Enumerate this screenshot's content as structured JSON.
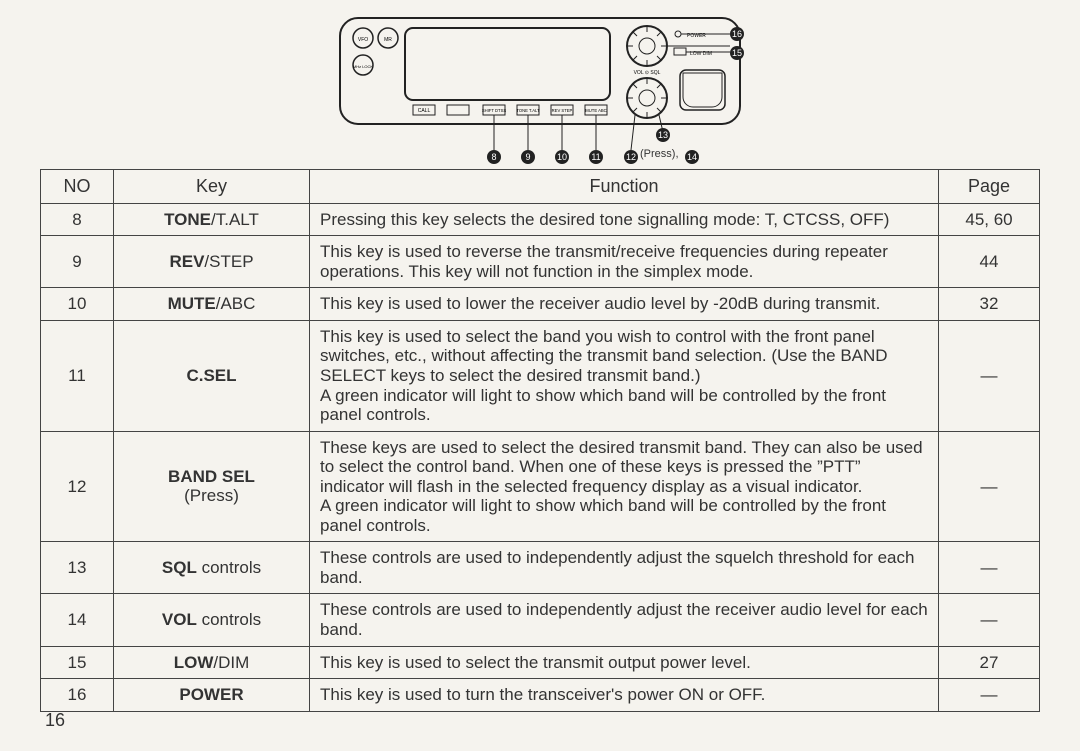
{
  "diagram": {
    "callouts": [
      "8",
      "9",
      "10",
      "11",
      "12",
      "13",
      "14",
      "15",
      "16"
    ],
    "press_label": "(Press),",
    "labels_below": [
      "CALL",
      "SHIFT DTSS",
      "TONE T.ALT",
      "REV STEP",
      "MUTE ABC"
    ],
    "right_labels": [
      "POWER",
      "LOW DIM"
    ],
    "left_btns": [
      "VFO",
      "MR",
      "MHz LOCK"
    ],
    "vol_sql": "VOL ⊙ SQL"
  },
  "headers": {
    "no": "NO",
    "key": "Key",
    "func": "Function",
    "page": "Page"
  },
  "rows": [
    {
      "no": "8",
      "key": "<b>TONE</b>/T.ALT",
      "func": "Pressing this key selects the desired tone signalling mode: T, CTCSS, OFF)",
      "page": "45, 60"
    },
    {
      "no": "9",
      "key": "<b>REV</b>/STEP",
      "func": "This key is used to reverse the transmit/receive frequencies during repeater operations.  This key will not function in the simplex mode.",
      "page": "44"
    },
    {
      "no": "10",
      "key": "<b>MUTE</b>/ABC",
      "func": "This key is used to lower the receiver audio level by -20dB during transmit.",
      "page": "32"
    },
    {
      "no": "11",
      "key": "<b>C.SEL</b>",
      "func": "This key is used to select the band you wish to control with the front panel switches, etc., without affecting the transmit band selection.  (Use the BAND SELECT keys to select the desired transmit band.)<br>A green indicator will light to show which band will be controlled by the front panel controls.",
      "page": "—"
    },
    {
      "no": "12",
      "key": "<b>BAND SEL</b><br>(Press)",
      "func": "These keys are used to select the desired transmit band.  They can also be used to select the control band.  When one of these keys is pressed the ”PTT” indicator will flash in the selected frequency display as a visual indicator.<br>A green indicator will light to show which band will be controlled by the front panel controls.",
      "page": "—"
    },
    {
      "no": "13",
      "key": "<b>SQL</b> controls",
      "func": "These controls are used to independently adjust the squelch threshold for each band.",
      "page": "—"
    },
    {
      "no": "14",
      "key": "<b>VOL</b> controls",
      "func": "These controls are used to independently adjust the receiver audio level for each band.",
      "page": "—"
    },
    {
      "no": "15",
      "key": "<b>LOW</b>/DIM",
      "func": "This key is used to select the transmit output power level.",
      "page": "27"
    },
    {
      "no": "16",
      "key": "<b>POWER</b>",
      "func": "This key is used to turn the transceiver's power ON or OFF.",
      "page": "—"
    }
  ],
  "page_number": "16"
}
